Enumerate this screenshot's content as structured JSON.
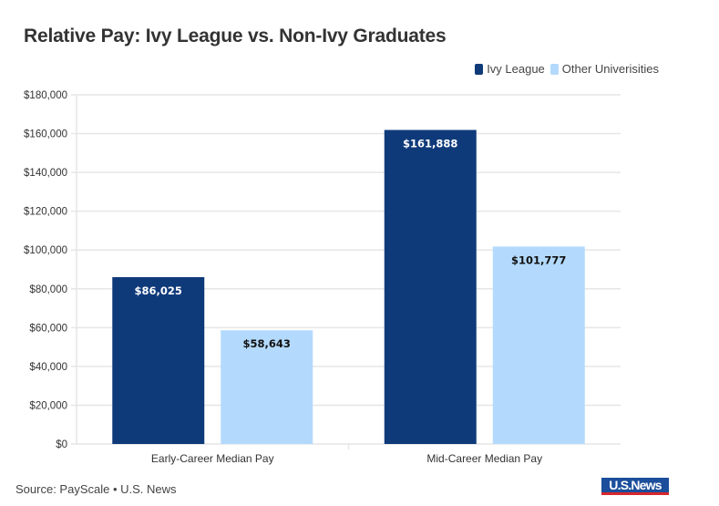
{
  "header": {
    "title": "Relative Pay: Ivy League vs. Non-Ivy Graduates"
  },
  "footer": {
    "source": "Source: PayScale • U.S. News",
    "logo_text": "U.S.News"
  },
  "colors": {
    "ivy": "#0f3a7a",
    "other": "#b3dafc",
    "grid": "#e6e6e6",
    "text": "#333333"
  },
  "chart_data": {
    "type": "bar",
    "title": "Relative Pay: Ivy League vs. Non-Ivy Graduates",
    "xlabel": "",
    "ylabel": "",
    "categories": [
      "Early-Career Median Pay",
      "Mid-Career Median Pay"
    ],
    "series": [
      {
        "name": "Ivy League",
        "values": [
          86025,
          161888
        ],
        "labels": [
          "$86,025",
          "$161,888"
        ]
      },
      {
        "name": "Other Univerisities",
        "values": [
          58643,
          101777
        ],
        "labels": [
          "$58,643",
          "$101,777"
        ]
      }
    ],
    "ylim": [
      0,
      180000
    ],
    "yticks": [
      0,
      20000,
      40000,
      60000,
      80000,
      100000,
      120000,
      140000,
      160000,
      180000
    ],
    "ytick_labels": [
      "$0",
      "$20,000",
      "$40,000",
      "$60,000",
      "$80,000",
      "$100,000",
      "$120,000",
      "$140,000",
      "$160,000",
      "$180,000"
    ],
    "grid": true,
    "legend": "top-right"
  }
}
